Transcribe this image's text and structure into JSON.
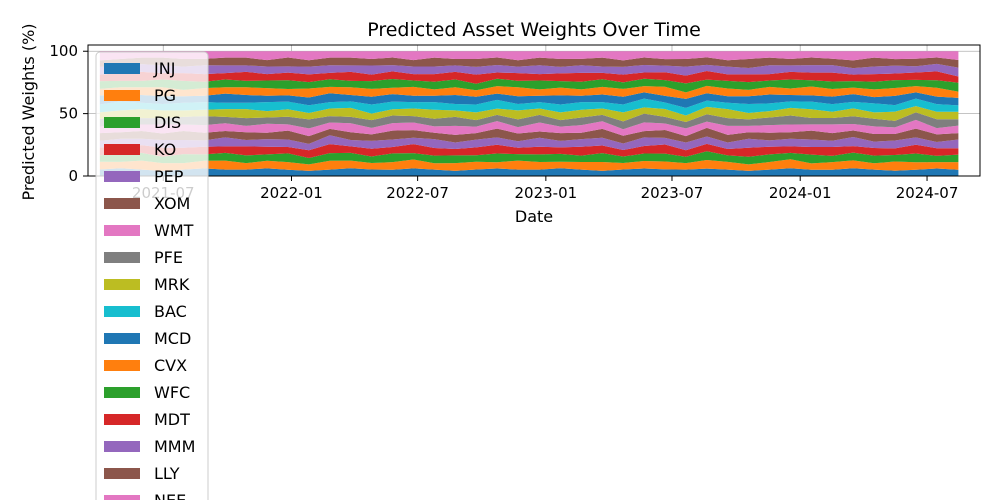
{
  "chart_data": {
    "type": "area",
    "stacked": true,
    "title": "Predicted Asset Weights Over Time",
    "xlabel": "Date",
    "ylabel": "Predicted Weights (%)",
    "xlim": [
      "2021-03-15",
      "2024-09-15"
    ],
    "ylim": [
      0,
      105
    ],
    "x_ticks": [
      "2021-07",
      "2022-01",
      "2022-07",
      "2023-01",
      "2023-07",
      "2024-01",
      "2024-07"
    ],
    "y_ticks": [
      0,
      50,
      100
    ],
    "grid": true,
    "legend_position": "upper-left",
    "x_range": [
      "2021-04-01",
      "2024-08-15"
    ],
    "total": 100,
    "series": [
      {
        "name": "JNJ",
        "color": "#1f77b4",
        "values": [
          5,
          6,
          5,
          4,
          5,
          6,
          5,
          5,
          6,
          5,
          4,
          5,
          6,
          5,
          5,
          6,
          5,
          4,
          5,
          6,
          5,
          5,
          6,
          5,
          4,
          5,
          6,
          5,
          5,
          6,
          5,
          4,
          5,
          6,
          5,
          5,
          6,
          5,
          4,
          5,
          6,
          5
        ]
      },
      {
        "name": "PG",
        "color": "#ff7f0e",
        "values": [
          6,
          5,
          7,
          6,
          5,
          6,
          7,
          5,
          6,
          6,
          5,
          7,
          6,
          5,
          6,
          7,
          5,
          6,
          6,
          5,
          7,
          6,
          5,
          6,
          7,
          5,
          6,
          6,
          5,
          7,
          6,
          5,
          6,
          7,
          5,
          6,
          6,
          5,
          7,
          6,
          5,
          6
        ]
      },
      {
        "name": "DIS",
        "color": "#2ca02c",
        "values": [
          5,
          6,
          6,
          5,
          7,
          5,
          6,
          6,
          5,
          7,
          5,
          6,
          6,
          5,
          7,
          5,
          6,
          6,
          5,
          7,
          5,
          6,
          6,
          5,
          7,
          5,
          6,
          6,
          5,
          7,
          5,
          6,
          6,
          5,
          7,
          5,
          6,
          6,
          5,
          7,
          5,
          6
        ]
      },
      {
        "name": "KO",
        "color": "#d62728",
        "values": [
          6,
          5,
          6,
          7,
          5,
          6,
          5,
          7,
          6,
          5,
          6,
          7,
          5,
          6,
          5,
          7,
          6,
          5,
          6,
          7,
          5,
          6,
          5,
          7,
          6,
          5,
          6,
          7,
          5,
          6,
          5,
          7,
          6,
          5,
          6,
          7,
          5,
          6,
          5,
          7,
          6,
          5
        ]
      },
      {
        "name": "PEP",
        "color": "#9467bd",
        "values": [
          5,
          7,
          5,
          6,
          6,
          5,
          7,
          5,
          6,
          6,
          5,
          7,
          5,
          6,
          6,
          5,
          7,
          5,
          6,
          6,
          5,
          7,
          5,
          6,
          6,
          5,
          7,
          5,
          6,
          6,
          5,
          7,
          5,
          6,
          6,
          5,
          7,
          5,
          6,
          6,
          5,
          7
        ]
      },
      {
        "name": "XOM",
        "color": "#8c564b",
        "values": [
          6,
          5,
          6,
          5,
          7,
          6,
          5,
          6,
          5,
          7,
          6,
          5,
          6,
          5,
          7,
          6,
          5,
          6,
          5,
          7,
          6,
          5,
          6,
          5,
          7,
          6,
          5,
          6,
          5,
          7,
          6,
          5,
          6,
          5,
          7,
          6,
          5,
          6,
          5,
          7,
          6,
          5
        ]
      },
      {
        "name": "WMT",
        "color": "#e377c2",
        "values": [
          5,
          6,
          5,
          7,
          5,
          6,
          6,
          5,
          7,
          5,
          6,
          5,
          7,
          5,
          6,
          6,
          5,
          7,
          5,
          6,
          5,
          7,
          5,
          6,
          6,
          5,
          7,
          5,
          6,
          5,
          7,
          5,
          6,
          6,
          5,
          7,
          5,
          6,
          5,
          7,
          5,
          6
        ]
      },
      {
        "name": "PFE",
        "color": "#7f7f7f",
        "values": [
          6,
          6,
          5,
          5,
          6,
          7,
          5,
          6,
          5,
          6,
          7,
          5,
          5,
          6,
          6,
          5,
          6,
          7,
          5,
          5,
          6,
          6,
          5,
          6,
          5,
          6,
          7,
          5,
          5,
          6,
          6,
          5,
          6,
          7,
          5,
          5,
          6,
          6,
          5,
          6,
          7,
          5
        ]
      },
      {
        "name": "MRK",
        "color": "#bcbd22",
        "values": [
          5,
          5,
          7,
          6,
          5,
          5,
          6,
          7,
          5,
          6,
          5,
          6,
          7,
          5,
          5,
          6,
          7,
          5,
          6,
          5,
          7,
          5,
          6,
          6,
          5,
          7,
          5,
          6,
          5,
          6,
          7,
          5,
          5,
          6,
          7,
          5,
          6,
          5,
          7,
          5,
          6,
          6
        ]
      },
      {
        "name": "BAC",
        "color": "#17becf",
        "values": [
          6,
          7,
          5,
          5,
          6,
          6,
          5,
          5,
          7,
          6,
          6,
          5,
          5,
          7,
          6,
          5,
          6,
          5,
          6,
          7,
          5,
          5,
          6,
          6,
          5,
          6,
          7,
          5,
          6,
          5,
          5,
          7,
          6,
          5,
          6,
          6,
          5,
          7,
          5,
          6,
          6,
          5
        ]
      },
      {
        "name": "MCD",
        "color": "#1f77b4",
        "values": [
          7,
          5,
          6,
          6,
          5,
          5,
          7,
          6,
          5,
          5,
          6,
          7,
          5,
          6,
          6,
          5,
          5,
          7,
          6,
          5,
          6,
          5,
          7,
          5,
          6,
          6,
          5,
          5,
          7,
          6,
          5,
          6,
          7,
          5,
          5,
          6,
          6,
          5,
          7,
          5,
          6,
          6
        ]
      },
      {
        "name": "CVX",
        "color": "#ff7f0e",
        "values": [
          5,
          6,
          6,
          7,
          5,
          6,
          5,
          6,
          6,
          5,
          7,
          5,
          6,
          6,
          5,
          7,
          5,
          6,
          5,
          6,
          7,
          5,
          6,
          5,
          6,
          6,
          5,
          7,
          5,
          6,
          6,
          5,
          6,
          5,
          7,
          6,
          5,
          6,
          6,
          5,
          7,
          5
        ]
      },
      {
        "name": "WFC",
        "color": "#2ca02c",
        "values": [
          6,
          5,
          5,
          6,
          7,
          5,
          6,
          5,
          6,
          7,
          5,
          6,
          5,
          6,
          7,
          5,
          6,
          6,
          5,
          6,
          5,
          7,
          5,
          6,
          6,
          5,
          6,
          5,
          7,
          5,
          6,
          6,
          5,
          7,
          5,
          6,
          5,
          6,
          6,
          5,
          6,
          7
        ]
      },
      {
        "name": "MDT",
        "color": "#d62728",
        "values": [
          5,
          6,
          7,
          5,
          6,
          6,
          5,
          7,
          5,
          6,
          6,
          5,
          7,
          5,
          6,
          5,
          6,
          6,
          7,
          5,
          6,
          5,
          6,
          7,
          5,
          6,
          5,
          6,
          6,
          7,
          5,
          6,
          5,
          6,
          6,
          7,
          5,
          6,
          5,
          6,
          7,
          5
        ]
      },
      {
        "name": "MMM",
        "color": "#9467bd",
        "values": [
          6,
          5,
          6,
          6,
          5,
          7,
          6,
          5,
          6,
          5,
          6,
          6,
          5,
          7,
          5,
          6,
          6,
          5,
          6,
          6,
          5,
          7,
          5,
          6,
          5,
          6,
          6,
          5,
          7,
          5,
          6,
          5,
          7,
          5,
          6,
          6,
          5,
          6,
          6,
          5,
          6,
          7
        ]
      },
      {
        "name": "LLY",
        "color": "#8c564b",
        "values": [
          5,
          6,
          5,
          6,
          6,
          5,
          6,
          6,
          5,
          7,
          5,
          6,
          6,
          5,
          6,
          5,
          7,
          5,
          6,
          6,
          5,
          6,
          6,
          5,
          7,
          5,
          6,
          5,
          6,
          6,
          5,
          7,
          6,
          5,
          6,
          5,
          6,
          7,
          5,
          6,
          5,
          6
        ]
      },
      {
        "name": "NEE",
        "color": "#e377c2",
        "values": [
          7,
          6,
          5,
          5,
          6,
          6,
          5,
          5,
          7,
          5,
          7,
          5,
          5,
          6,
          5,
          7,
          5,
          6,
          6,
          5,
          7,
          5,
          6,
          6,
          5,
          7,
          5,
          6,
          6,
          5,
          7,
          6,
          5,
          6,
          5,
          6,
          7,
          5,
          6,
          6,
          5,
          7
        ]
      }
    ]
  }
}
